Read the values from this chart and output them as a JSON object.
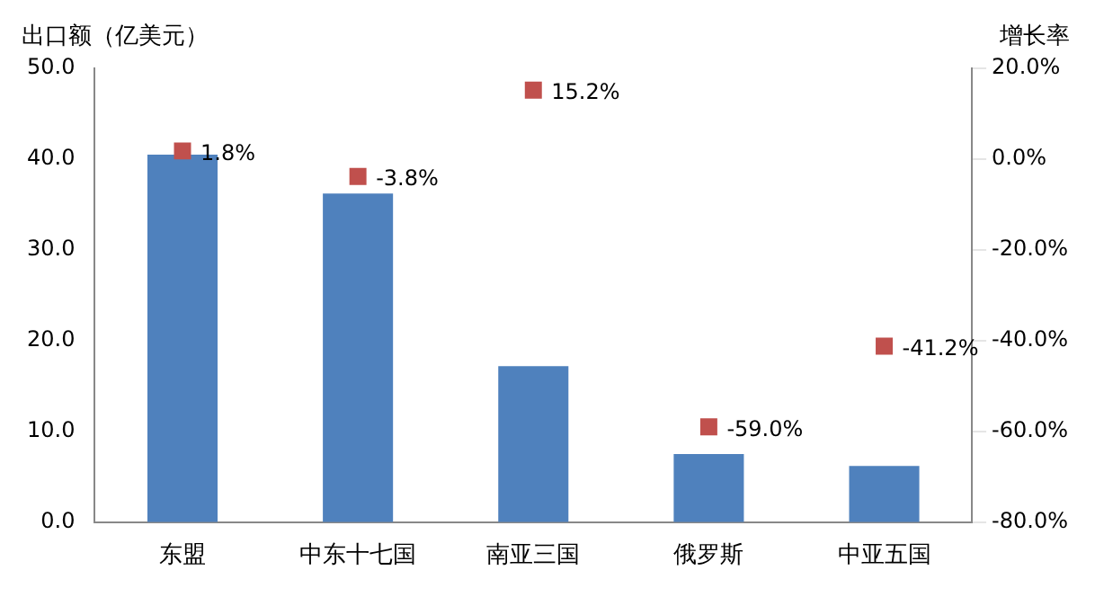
{
  "chart_data": {
    "type": "bar",
    "ylabel": "出口额（亿美元）",
    "y2label": "增长率",
    "categories": [
      "东盟",
      "中东十七国",
      "南亚三国",
      "俄罗斯",
      "中亚五国"
    ],
    "series": [
      {
        "color": "#4f81bd",
        "values": [
          40.5,
          36.2,
          17.2,
          7.5,
          6.2
        ]
      },
      {
        "type": "scatter",
        "axis": "y2",
        "color": "#c0504d",
        "marker": "square",
        "values": [
          1.8,
          -3.8,
          15.2,
          -59.0,
          -41.2
        ],
        "value_labels": [
          "1.8%",
          "-3.8%",
          "15.2%",
          "-59.0%",
          "-41.2%"
        ]
      }
    ],
    "ylim": [
      0,
      50
    ],
    "yticks": [
      {
        "value": 0,
        "label": "0.0"
      },
      {
        "value": 10,
        "label": "10.0"
      },
      {
        "value": 20,
        "label": "20.0"
      },
      {
        "value": 30,
        "label": "30.0"
      },
      {
        "value": 40,
        "label": "40.0"
      },
      {
        "value": 50,
        "label": "50.0"
      }
    ],
    "y2lim": [
      -80,
      20
    ],
    "y2ticks": [
      {
        "value": -80,
        "label": "-80.0%"
      },
      {
        "value": -60,
        "label": "-60.0%"
      },
      {
        "value": -40,
        "label": "-40.0%"
      },
      {
        "value": -20,
        "label": "-20.0%"
      },
      {
        "value": 0,
        "label": "0.0%"
      },
      {
        "value": 20,
        "label": "20.0%"
      }
    ]
  }
}
